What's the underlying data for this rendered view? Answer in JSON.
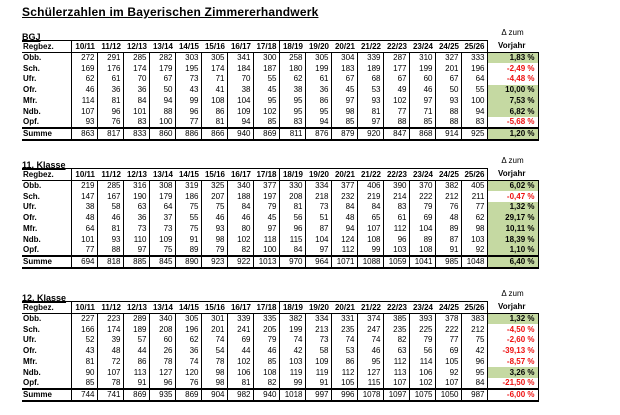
{
  "title": "Schülerzahlen im Bayerischen Zimmererhandwerk",
  "columns": {
    "region": "Regbez.",
    "years": [
      "10/11",
      "11/12",
      "12/13",
      "13/14",
      "14/15",
      "15/16",
      "16/17",
      "17/18",
      "18/19",
      "19/20",
      "20/21",
      "21/22",
      "22/23",
      "23/24",
      "24/25",
      "25/26"
    ],
    "delta_line1": "Δ zum",
    "delta_line2": "Vorjahr"
  },
  "colors": {
    "positive_bg": "#c5d9a2",
    "negative_text": "#ee1010"
  },
  "tables": [
    {
      "label": "BGJ",
      "rows": [
        {
          "label": "Obb.",
          "values": [
            272,
            291,
            285,
            282,
            303,
            305,
            341,
            300,
            258,
            305,
            304,
            339,
            287,
            310,
            327,
            333
          ],
          "delta": "1,83 %",
          "trend": "positive"
        },
        {
          "label": "Sch.",
          "values": [
            169,
            176,
            174,
            179,
            195,
            174,
            184,
            187,
            180,
            199,
            183,
            189,
            177,
            199,
            201,
            196
          ],
          "delta": "-2,49 %",
          "trend": "negative"
        },
        {
          "label": "Ufr.",
          "values": [
            62,
            61,
            70,
            67,
            73,
            71,
            70,
            55,
            62,
            61,
            67,
            68,
            67,
            60,
            67,
            64
          ],
          "delta": "-4,48 %",
          "trend": "negative"
        },
        {
          "label": "Ofr.",
          "values": [
            46,
            36,
            36,
            50,
            43,
            41,
            38,
            45,
            38,
            36,
            45,
            53,
            49,
            46,
            50,
            55
          ],
          "delta": "10,00 %",
          "trend": "positive"
        },
        {
          "label": "Mfr.",
          "values": [
            114,
            81,
            84,
            94,
            99,
            108,
            104,
            95,
            95,
            86,
            97,
            93,
            102,
            97,
            93,
            100
          ],
          "delta": "7,53 %",
          "trend": "positive"
        },
        {
          "label": "Ndb.",
          "values": [
            107,
            96,
            101,
            88,
            96,
            86,
            109,
            102,
            95,
            95,
            98,
            81,
            77,
            71,
            88,
            94
          ],
          "delta": "6,82 %",
          "trend": "positive"
        },
        {
          "label": "Opf.",
          "values": [
            93,
            76,
            83,
            100,
            77,
            81,
            94,
            85,
            83,
            94,
            85,
            97,
            88,
            85,
            88,
            83
          ],
          "delta": "-5,68 %",
          "trend": "negative"
        }
      ],
      "total": {
        "label": "Summe",
        "values": [
          863,
          817,
          833,
          860,
          886,
          866,
          940,
          869,
          811,
          876,
          879,
          920,
          847,
          868,
          914,
          925
        ],
        "delta": "1,20 %",
        "trend": "positive"
      }
    },
    {
      "label": "11. Klasse",
      "rows": [
        {
          "label": "Obb.",
          "values": [
            219,
            285,
            316,
            308,
            319,
            325,
            340,
            377,
            330,
            334,
            377,
            406,
            390,
            370,
            382,
            405
          ],
          "delta": "6,02 %",
          "trend": "positive"
        },
        {
          "label": "Sch.",
          "values": [
            147,
            167,
            190,
            179,
            186,
            207,
            188,
            197,
            208,
            218,
            232,
            219,
            214,
            222,
            212,
            211
          ],
          "delta": "-0,47 %",
          "trend": "negative"
        },
        {
          "label": "Ufr.",
          "values": [
            38,
            58,
            63,
            64,
            75,
            75,
            84,
            79,
            81,
            73,
            84,
            84,
            83,
            79,
            76,
            77
          ],
          "delta": "1,32 %",
          "trend": "positive"
        },
        {
          "label": "Ofr.",
          "values": [
            48,
            46,
            36,
            37,
            55,
            46,
            46,
            45,
            56,
            51,
            48,
            65,
            61,
            69,
            48,
            62
          ],
          "delta": "29,17 %",
          "trend": "positive"
        },
        {
          "label": "Mfr.",
          "values": [
            64,
            81,
            73,
            73,
            75,
            93,
            80,
            97,
            96,
            87,
            94,
            107,
            112,
            104,
            89,
            98
          ],
          "delta": "10,11 %",
          "trend": "positive"
        },
        {
          "label": "Ndb.",
          "values": [
            101,
            93,
            110,
            109,
            91,
            98,
            102,
            118,
            115,
            104,
            124,
            108,
            96,
            89,
            87,
            103
          ],
          "delta": "18,39 %",
          "trend": "positive"
        },
        {
          "label": "Opf.",
          "values": [
            77,
            88,
            97,
            75,
            89,
            79,
            82,
            100,
            84,
            97,
            112,
            99,
            103,
            108,
            91,
            92
          ],
          "delta": "1,10 %",
          "trend": "positive"
        }
      ],
      "total": {
        "label": "Summe",
        "values": [
          694,
          818,
          885,
          845,
          890,
          923,
          922,
          1013,
          970,
          964,
          1071,
          1088,
          1059,
          1041,
          985,
          1048
        ],
        "delta": "6,40 %",
        "trend": "positive"
      }
    },
    {
      "label": "12. Klasse",
      "rows": [
        {
          "label": "Obb.",
          "values": [
            227,
            223,
            289,
            340,
            305,
            301,
            339,
            335,
            382,
            334,
            331,
            374,
            385,
            393,
            378,
            383
          ],
          "delta": "1,32 %",
          "trend": "positive"
        },
        {
          "label": "Sch.",
          "values": [
            166,
            174,
            189,
            208,
            196,
            201,
            241,
            205,
            199,
            213,
            235,
            247,
            235,
            225,
            222,
            212
          ],
          "delta": "-4,50 %",
          "trend": "negative"
        },
        {
          "label": "Ufr.",
          "values": [
            52,
            39,
            57,
            60,
            62,
            74,
            69,
            79,
            74,
            73,
            74,
            74,
            82,
            79,
            77,
            75
          ],
          "delta": "-2,60 %",
          "trend": "negative"
        },
        {
          "label": "Ofr.",
          "values": [
            43,
            48,
            44,
            26,
            36,
            54,
            44,
            46,
            42,
            58,
            53,
            46,
            63,
            56,
            69,
            42
          ],
          "delta": "-39,13 %",
          "trend": "negative"
        },
        {
          "label": "Mfr.",
          "values": [
            81,
            72,
            86,
            78,
            74,
            78,
            102,
            85,
            103,
            109,
            86,
            95,
            112,
            114,
            105,
            96
          ],
          "delta": "-8,57 %",
          "trend": "negative"
        },
        {
          "label": "Ndb.",
          "values": [
            90,
            107,
            113,
            127,
            120,
            98,
            106,
            108,
            119,
            119,
            112,
            127,
            113,
            106,
            92,
            95
          ],
          "delta": "3,26 %",
          "trend": "positive"
        },
        {
          "label": "Opf.",
          "values": [
            85,
            78,
            91,
            96,
            76,
            98,
            81,
            82,
            99,
            91,
            105,
            115,
            107,
            102,
            107,
            84
          ],
          "delta": "-21,50 %",
          "trend": "negative"
        }
      ],
      "total": {
        "label": "Summe",
        "values": [
          744,
          741,
          869,
          935,
          869,
          904,
          982,
          940,
          1018,
          997,
          996,
          1078,
          1097,
          1075,
          1050,
          987
        ],
        "delta": "-6,00 %",
        "trend": "negative"
      }
    }
  ]
}
